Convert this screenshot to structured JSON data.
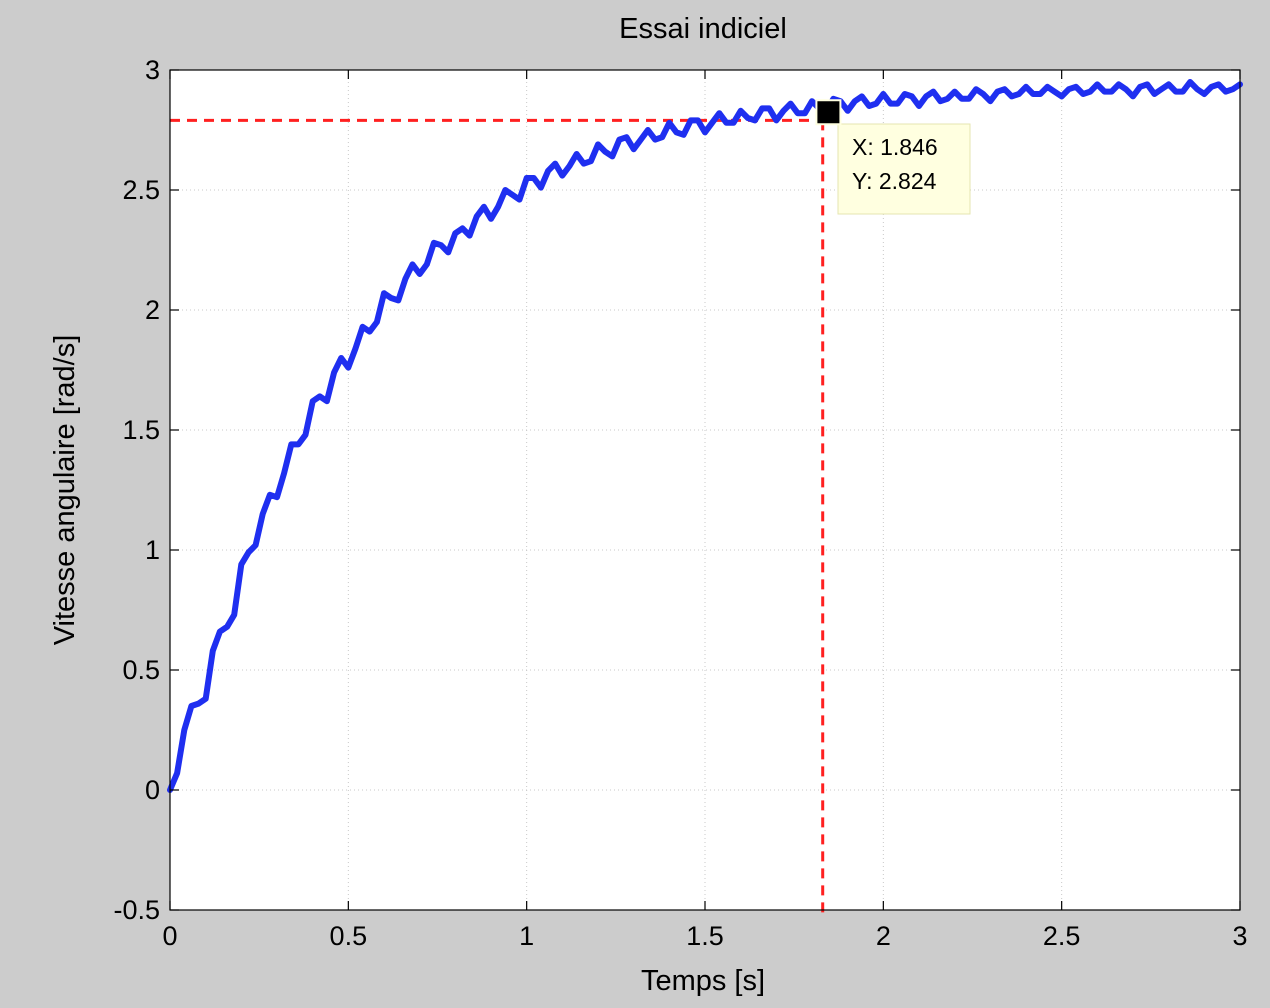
{
  "chart_data": {
    "type": "line",
    "title": "Essai indiciel",
    "xlabel": "Temps [s]",
    "ylabel": "Vitesse angulaire [rad/s]",
    "xlim": [
      0,
      3
    ],
    "ylim": [
      -0.5,
      3
    ],
    "xticks": [
      0,
      0.5,
      1,
      1.5,
      2,
      2.5,
      3
    ],
    "xtick_labels": [
      "0",
      "0.5",
      "1",
      "1.5",
      "2",
      "2.5",
      "3"
    ],
    "yticks": [
      -0.5,
      0,
      0.5,
      1,
      1.5,
      2,
      2.5,
      3
    ],
    "ytick_labels": [
      "-0.5",
      "0",
      "0.5",
      "1",
      "1.5",
      "2",
      "2.5",
      "3"
    ],
    "grid": true,
    "series": [
      {
        "color": "#1f2ff0",
        "x": [
          0,
          0.02,
          0.04,
          0.06,
          0.08,
          0.1,
          0.12,
          0.14,
          0.16,
          0.18,
          0.2,
          0.22,
          0.24,
          0.26,
          0.28,
          0.3,
          0.32,
          0.34,
          0.36,
          0.38,
          0.4,
          0.42,
          0.44,
          0.46,
          0.48,
          0.5,
          0.52,
          0.54,
          0.56,
          0.58,
          0.6,
          0.62,
          0.64,
          0.66,
          0.68,
          0.7,
          0.72,
          0.74,
          0.76,
          0.78,
          0.8,
          0.82,
          0.84,
          0.86,
          0.88,
          0.9,
          0.92,
          0.94,
          0.96,
          0.98,
          1.0,
          1.02,
          1.04,
          1.06,
          1.08,
          1.1,
          1.12,
          1.14,
          1.16,
          1.18,
          1.2,
          1.22,
          1.24,
          1.26,
          1.28,
          1.3,
          1.32,
          1.34,
          1.36,
          1.38,
          1.4,
          1.42,
          1.44,
          1.46,
          1.48,
          1.5,
          1.52,
          1.54,
          1.56,
          1.58,
          1.6,
          1.62,
          1.64,
          1.66,
          1.68,
          1.7,
          1.72,
          1.74,
          1.76,
          1.78,
          1.8,
          1.82,
          1.84,
          1.86,
          1.88,
          1.9,
          1.92,
          1.94,
          1.96,
          1.98,
          2.0,
          2.02,
          2.04,
          2.06,
          2.08,
          2.1,
          2.12,
          2.14,
          2.16,
          2.18,
          2.2,
          2.22,
          2.24,
          2.26,
          2.28,
          2.3,
          2.32,
          2.34,
          2.36,
          2.38,
          2.4,
          2.42,
          2.44,
          2.46,
          2.48,
          2.5,
          2.52,
          2.54,
          2.56,
          2.58,
          2.6,
          2.62,
          2.64,
          2.66,
          2.68,
          2.7,
          2.72,
          2.74,
          2.76,
          2.78,
          2.8,
          2.82,
          2.84,
          2.86,
          2.88,
          2.9,
          2.92,
          2.94,
          2.96,
          2.98,
          3.0
        ],
        "y": [
          0.0,
          0.07,
          0.25,
          0.35,
          0.36,
          0.38,
          0.58,
          0.66,
          0.68,
          0.73,
          0.94,
          0.99,
          1.02,
          1.15,
          1.23,
          1.22,
          1.32,
          1.44,
          1.44,
          1.48,
          1.62,
          1.64,
          1.62,
          1.74,
          1.8,
          1.76,
          1.84,
          1.93,
          1.91,
          1.95,
          2.07,
          2.05,
          2.04,
          2.13,
          2.19,
          2.15,
          2.19,
          2.28,
          2.27,
          2.24,
          2.32,
          2.34,
          2.31,
          2.39,
          2.43,
          2.38,
          2.43,
          2.5,
          2.48,
          2.46,
          2.55,
          2.55,
          2.51,
          2.58,
          2.61,
          2.56,
          2.6,
          2.65,
          2.61,
          2.62,
          2.69,
          2.66,
          2.64,
          2.71,
          2.72,
          2.67,
          2.71,
          2.75,
          2.71,
          2.72,
          2.78,
          2.74,
          2.73,
          2.79,
          2.79,
          2.74,
          2.78,
          2.82,
          2.78,
          2.78,
          2.83,
          2.8,
          2.79,
          2.84,
          2.84,
          2.79,
          2.83,
          2.86,
          2.82,
          2.82,
          2.87,
          2.84,
          2.83,
          2.88,
          2.87,
          2.83,
          2.87,
          2.89,
          2.85,
          2.86,
          2.9,
          2.86,
          2.86,
          2.9,
          2.89,
          2.85,
          2.89,
          2.91,
          2.87,
          2.88,
          2.91,
          2.88,
          2.88,
          2.92,
          2.9,
          2.87,
          2.91,
          2.92,
          2.89,
          2.9,
          2.93,
          2.9,
          2.9,
          2.93,
          2.91,
          2.89,
          2.92,
          2.93,
          2.9,
          2.91,
          2.94,
          2.91,
          2.91,
          2.94,
          2.92,
          2.89,
          2.93,
          2.94,
          2.9,
          2.92,
          2.94,
          2.91,
          2.91,
          2.95,
          2.92,
          2.9,
          2.93,
          2.94,
          2.91,
          2.92,
          2.94
        ]
      }
    ],
    "datatip": {
      "x": 1.846,
      "y": 2.824,
      "label_x": "X: 1.846",
      "label_y": "Y: 2.824",
      "background": "#ffffe0",
      "marker_color": "#000000"
    },
    "reference_lines": {
      "color": "#ff2020",
      "style": "dashed",
      "level_y": 2.79,
      "at_x": 1.83
    }
  }
}
